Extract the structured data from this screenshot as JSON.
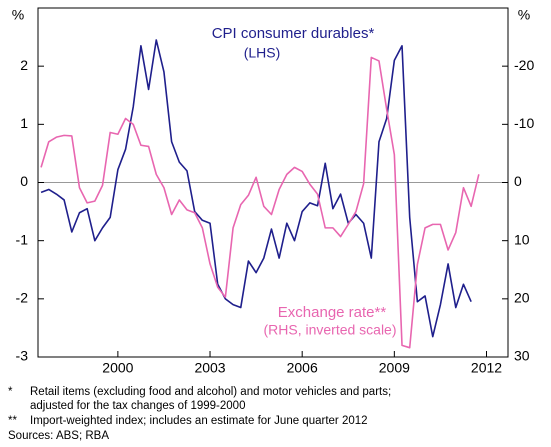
{
  "chart_data": {
    "type": "line",
    "x": [
      1997.5,
      1997.75,
      1998,
      1998.25,
      1998.5,
      1998.75,
      1999,
      1999.25,
      1999.5,
      1999.75,
      2000,
      2000.25,
      2000.5,
      2000.75,
      2001,
      2001.25,
      2001.5,
      2001.75,
      2002,
      2002.25,
      2002.5,
      2002.75,
      2003,
      2003.25,
      2003.5,
      2003.75,
      2004,
      2004.25,
      2004.5,
      2004.75,
      2005,
      2005.25,
      2005.5,
      2005.75,
      2006,
      2006.25,
      2006.5,
      2006.75,
      2007,
      2007.25,
      2007.5,
      2007.75,
      2008,
      2008.25,
      2008.5,
      2008.75,
      2009,
      2009.25,
      2009.5,
      2009.75,
      2010,
      2010.25,
      2010.5,
      2010.75,
      2011,
      2011.25,
      2011.5,
      2011.75
    ],
    "series": [
      {
        "name": "CPI consumer durables*",
        "color": "#1f1f8c",
        "values": [
          -0.17,
          -0.12,
          -0.2,
          -0.3,
          -0.85,
          -0.52,
          -0.45,
          -1.0,
          -0.78,
          -0.6,
          0.22,
          0.57,
          1.3,
          2.35,
          1.6,
          2.45,
          1.9,
          0.7,
          0.35,
          0.2,
          -0.5,
          -0.65,
          -0.7,
          -1.75,
          -2.0,
          -2.1,
          -2.15,
          -1.35,
          -1.55,
          -1.3,
          -0.8,
          -1.3,
          -0.7,
          -1.0,
          -0.5,
          -0.35,
          -0.4,
          0.33,
          -0.45,
          -0.2,
          -0.7,
          -0.55,
          -0.7,
          -1.3,
          0.7,
          1.1,
          2.1,
          2.35,
          -0.6,
          -2.05,
          -1.95,
          -2.65,
          -2.1,
          -1.4,
          -2.15,
          -1.75,
          -2.05,
          null
        ]
      },
      {
        "name": "Exchange rate**",
        "color": "#e866b0",
        "axis": "y2",
        "values": [
          -2.6,
          -7,
          -7.8,
          -8.1,
          -8,
          0.9,
          3.5,
          3.2,
          0.5,
          -8.6,
          -8.3,
          -11,
          -10,
          -6.4,
          -6.2,
          -1.4,
          0.9,
          5.5,
          3,
          4.7,
          5.2,
          7.8,
          14,
          18,
          19.7,
          7.8,
          3.8,
          2.2,
          -0.9,
          4.1,
          5.5,
          1.2,
          -1.4,
          -2.6,
          -1.9,
          0.3,
          2,
          7.8,
          7.8,
          9.3,
          7.2,
          5,
          0.2,
          -21.5,
          -20.9,
          -12.6,
          -4.8,
          28,
          28.4,
          14.1,
          7.8,
          7.2,
          7.2,
          11.6,
          8.6,
          0.9,
          4.1,
          -1.4
        ]
      }
    ],
    "annotations": [
      "(LHS)",
      "(RHS, inverted scale)"
    ],
    "y_axis_label": "%",
    "y2_axis_label": "%",
    "xlim": [
      1997.4,
      2012.7
    ],
    "xticks": [
      2000,
      2003,
      2006,
      2009,
      2012
    ],
    "ylim": [
      -3,
      3
    ],
    "yticks": [
      -3,
      -2,
      -1,
      0,
      1,
      2
    ],
    "y2lim": [
      -30,
      30
    ],
    "y2ticks": [
      -20,
      -10,
      0,
      10,
      20,
      30
    ],
    "y2_inverted": true,
    "footnotes": [
      {
        "marker": "*",
        "lines": [
          "Retail items (excluding food and alcohol) and motor vehicles and parts;",
          "adjusted for the tax changes of 1999-2000"
        ]
      },
      {
        "marker": "**",
        "lines": [
          "Import-weighted index; includes an estimate for June quarter 2012"
        ]
      }
    ],
    "source": "Sources: ABS; RBA"
  }
}
